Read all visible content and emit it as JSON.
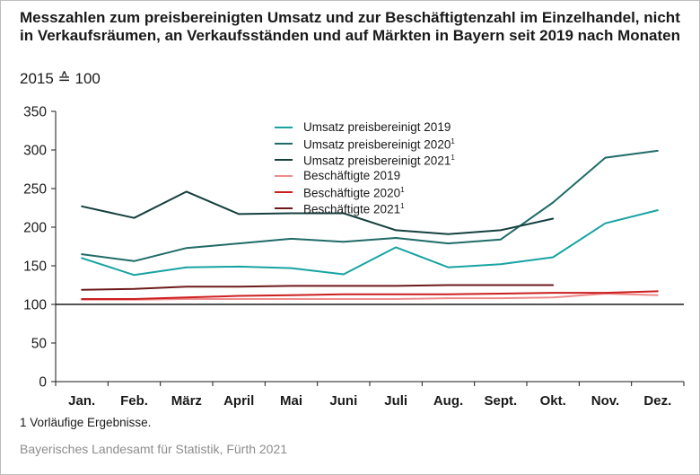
{
  "title": "Messzahlen zum preisbereinigten Umsatz und zur Beschäftigtenzahl im Einzelhandel, nicht in Verkaufsräumen, an Verkaufsständen und auf Märkten in Bayern seit 2019 nach Monaten",
  "subtitle": "2015 ≙ 100",
  "footnote": "1  Vorläufige Ergebnisse.",
  "source": "Bayerisches Landesamt für Statistik, Fürth 2021",
  "chart_data": {
    "type": "line",
    "title": "Messzahlen zum preisbereinigten Umsatz und zur Beschäftigtenzahl im Einzelhandel, nicht in Verkaufsräumen, an Verkaufsständen und auf Märkten in Bayern seit 2019 nach Monaten",
    "subtitle": "2015 ≙ 100",
    "xlabel": "",
    "ylabel": "",
    "categories": [
      "Jan.",
      "Feb.",
      "März",
      "April",
      "Mai",
      "Juni",
      "Juli",
      "Aug.",
      "Sept.",
      "Okt.",
      "Nov.",
      "Dez."
    ],
    "ylim": [
      0,
      350
    ],
    "yticks": [
      0,
      50,
      100,
      150,
      200,
      250,
      300,
      350
    ],
    "baseline": 100,
    "grid": false,
    "legend_position": "top-center",
    "series": [
      {
        "name": "Umsatz preisbereinigt 2019",
        "sup": "",
        "color": "#17a3a3",
        "values": [
          160,
          138,
          148,
          149,
          147,
          139,
          174,
          148,
          152,
          161,
          205,
          222
        ]
      },
      {
        "name": "Umsatz preisbereinigt 2020",
        "sup": "1",
        "color": "#1f6b68",
        "values": [
          165,
          156,
          173,
          179,
          185,
          181,
          186,
          179,
          184,
          232,
          290,
          299
        ]
      },
      {
        "name": "Umsatz preisbereinigt 2021",
        "sup": "1",
        "color": "#15403f",
        "values": [
          227,
          212,
          246,
          217,
          218,
          218,
          196,
          191,
          196,
          211,
          null,
          null
        ]
      },
      {
        "name": "Beschäftigte 2019",
        "sup": "",
        "color": "#ee8b8b",
        "values": [
          106,
          106,
          107,
          107,
          107,
          107,
          107,
          108,
          108,
          109,
          114,
          112
        ]
      },
      {
        "name": "Beschäftigte 2020",
        "sup": "1",
        "color": "#cc1f1f",
        "values": [
          107,
          107,
          109,
          111,
          112,
          113,
          113,
          113,
          114,
          115,
          115,
          117
        ]
      },
      {
        "name": "Beschäftigte 2021",
        "sup": "1",
        "color": "#6e1a1a",
        "values": [
          119,
          120,
          123,
          123,
          124,
          124,
          124,
          125,
          125,
          125,
          null,
          null
        ]
      }
    ]
  }
}
